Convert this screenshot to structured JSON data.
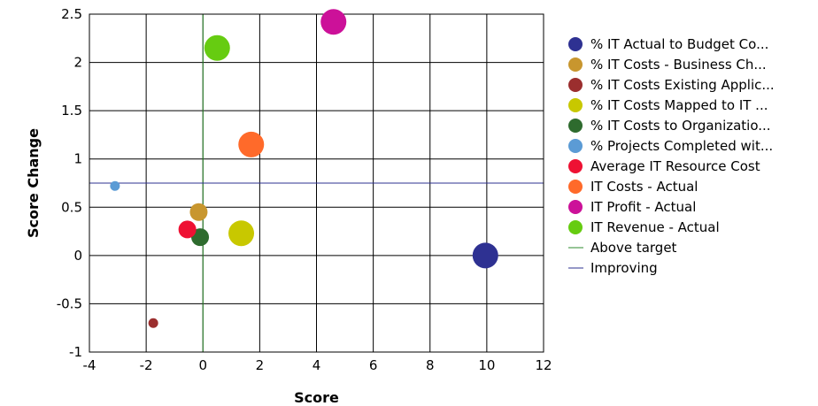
{
  "chart_data": {
    "type": "scatter",
    "variant": "bubble",
    "xlabel": "Score",
    "ylabel": "Score Change",
    "xlim": [
      -4,
      12
    ],
    "ylim": [
      -1,
      2.5
    ],
    "xticks": [
      "-4",
      "-2",
      "0",
      "2",
      "4",
      "6",
      "8",
      "10",
      "12"
    ],
    "yticks": [
      "-1",
      "-0.5",
      "0",
      "0.5",
      "1",
      "1.5",
      "2",
      "2.5"
    ],
    "grid": true,
    "legend_position": "right",
    "series": [
      {
        "name": "% IT Actual to Budget Co...",
        "color": "#2e3192",
        "x": 9.95,
        "y": 0.0,
        "size": 3
      },
      {
        "name": "% IT Costs - Business Ch...",
        "color": "#c8962e",
        "x": -0.15,
        "y": 0.45,
        "size": 2
      },
      {
        "name": "% IT Costs Existing Applic...",
        "color": "#9b2e2e",
        "x": -1.75,
        "y": -0.7,
        "size": 1
      },
      {
        "name": "% IT Costs Mapped to IT ...",
        "color": "#c8c800",
        "x": 1.35,
        "y": 0.23,
        "size": 3
      },
      {
        "name": "% IT Costs to Organizatio...",
        "color": "#2e6b2e",
        "x": -0.1,
        "y": 0.19,
        "size": 2
      },
      {
        "name": "% Projects Completed wit...",
        "color": "#5b9bd5",
        "x": -3.1,
        "y": 0.72,
        "size": 1
      },
      {
        "name": "Average IT Resource Cost",
        "color": "#ee1133",
        "x": -0.55,
        "y": 0.27,
        "size": 2
      },
      {
        "name": "IT Costs - Actual",
        "color": "#ff6a2a",
        "x": 1.7,
        "y": 1.15,
        "size": 3
      },
      {
        "name": "IT Profit - Actual",
        "color": "#cc1199",
        "x": 4.6,
        "y": 2.42,
        "size": 3
      },
      {
        "name": "IT Revenue - Actual",
        "color": "#66cc11",
        "x": 0.5,
        "y": 2.15,
        "size": 3
      }
    ],
    "reference_lines": [
      {
        "name": "Above target",
        "orientation": "vertical",
        "value": 0,
        "color": "#2e8b2e"
      },
      {
        "name": "Improving",
        "orientation": "horizontal",
        "value": 0.75,
        "color": "#2e3192"
      }
    ]
  }
}
